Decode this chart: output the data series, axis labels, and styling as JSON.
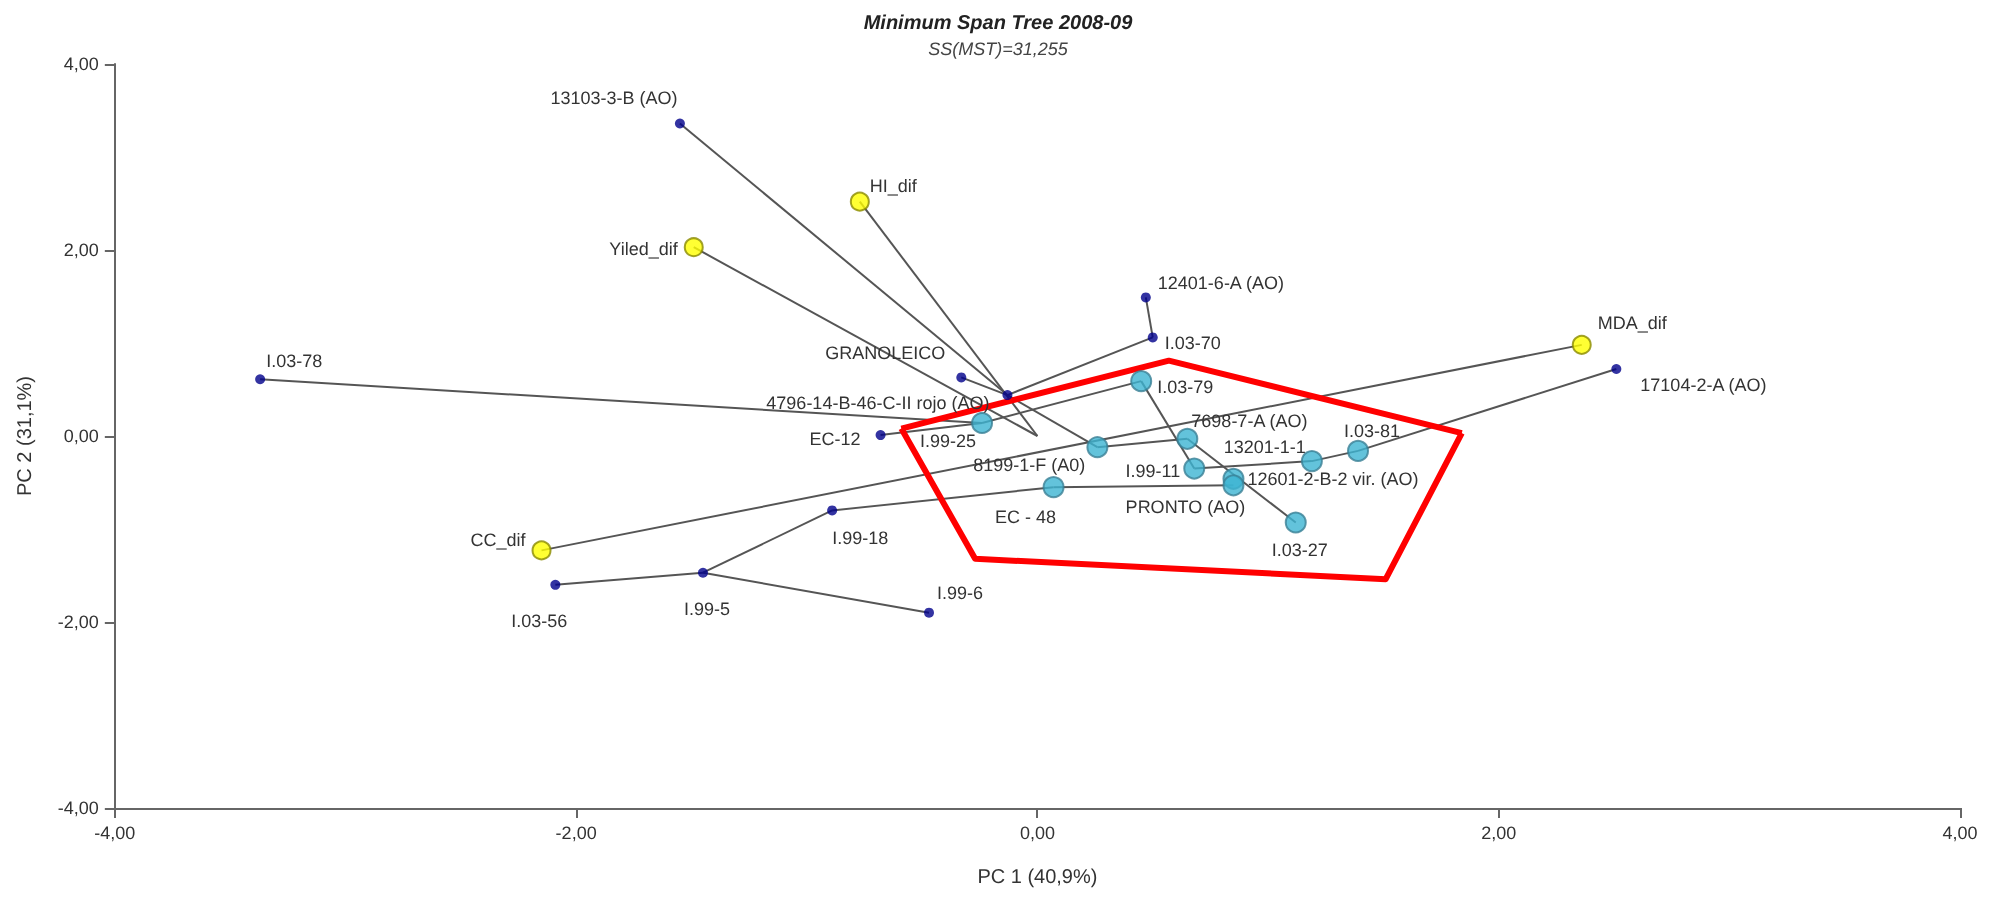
{
  "chart_data": {
    "type": "scatter",
    "title": "Minimum Span Tree 2008-09",
    "subtitle": "SS(MST)=31,255",
    "xlabel": "PC 1 (40,9%)",
    "ylabel": "PC 2 (31,1%)",
    "xlim": [
      -4,
      4
    ],
    "ylim": [
      -4,
      4
    ],
    "xticks": [
      {
        "value": -4,
        "label": "-4,00"
      },
      {
        "value": -2,
        "label": "-2,00"
      },
      {
        "value": 0,
        "label": "0,00"
      },
      {
        "value": 2,
        "label": "2,00"
      },
      {
        "value": 4,
        "label": "4,00"
      }
    ],
    "yticks": [
      {
        "value": -4,
        "label": "-4,00"
      },
      {
        "value": -2,
        "label": "-2,00"
      },
      {
        "value": 0,
        "label": "0,00"
      },
      {
        "value": 2,
        "label": "2,00"
      },
      {
        "value": 4,
        "label": "4,00"
      }
    ],
    "series": [
      {
        "type": "line",
        "color": "#ff0000",
        "marker": "none",
        "x": [
          -0.59,
          0.57,
          1.84
        ],
        "values": [
          0.08,
          0.81,
          0.03
        ]
      },
      {
        "type": "line",
        "color": "#ff0000",
        "marker": "none",
        "x": [
          -0.59,
          -0.27,
          1.51,
          1.84
        ],
        "values": [
          0.08,
          -1.32,
          -1.54,
          0.03
        ]
      },
      {
        "type": "line",
        "color": "#555555",
        "marker": "none",
        "x": [
          -1.55,
          -0.13
        ],
        "values": [
          3.36,
          0.44
        ]
      },
      {
        "type": "line",
        "color": "#555555",
        "marker": "none",
        "x": [
          -3.37,
          -0.24
        ],
        "values": [
          0.61,
          0.14
        ]
      },
      {
        "type": "line",
        "color": "#555555",
        "marker": "none",
        "x": [
          -0.68,
          -0.24
        ],
        "values": [
          0.01,
          0.14
        ]
      },
      {
        "type": "line",
        "color": "#555555",
        "marker": "none",
        "x": [
          -0.33,
          -0.13
        ],
        "values": [
          0.63,
          0.44
        ]
      },
      {
        "type": "line",
        "color": "#555555",
        "marker": "none",
        "x": [
          -0.13,
          0.5
        ],
        "values": [
          0.44,
          1.06
        ]
      },
      {
        "type": "line",
        "color": "#555555",
        "marker": "none",
        "x": [
          0.5,
          0.47
        ],
        "values": [
          1.06,
          1.49
        ]
      },
      {
        "type": "line",
        "color": "#555555",
        "marker": "none",
        "x": [
          -0.24,
          0.45
        ],
        "values": [
          0.14,
          0.59
        ]
      },
      {
        "type": "line",
        "color": "#555555",
        "marker": "none",
        "x": [
          0.45,
          0.68
        ],
        "values": [
          0.59,
          -0.35
        ]
      },
      {
        "type": "line",
        "color": "#555555",
        "marker": "none",
        "x": [
          0.68,
          1.19
        ],
        "values": [
          -0.35,
          -0.27
        ]
      },
      {
        "type": "line",
        "color": "#555555",
        "marker": "none",
        "x": [
          1.19,
          1.39
        ],
        "values": [
          -0.27,
          -0.16
        ]
      },
      {
        "type": "line",
        "color": "#555555",
        "marker": "none",
        "x": [
          1.39,
          2.51
        ],
        "values": [
          -0.16,
          0.72
        ]
      },
      {
        "type": "line",
        "color": "#555555",
        "marker": "none",
        "x": [
          -0.13,
          0.26
        ],
        "values": [
          0.44,
          -0.12
        ]
      },
      {
        "type": "line",
        "color": "#555555",
        "marker": "none",
        "x": [
          0.26,
          0.65
        ],
        "values": [
          -0.12,
          -0.03
        ]
      },
      {
        "type": "line",
        "color": "#555555",
        "marker": "none",
        "x": [
          0.65,
          1.12
        ],
        "values": [
          -0.03,
          -0.93
        ]
      },
      {
        "type": "line",
        "color": "#555555",
        "marker": "none",
        "x": [
          -2.09,
          -1.45
        ],
        "values": [
          -1.6,
          -1.47
        ]
      },
      {
        "type": "line",
        "color": "#555555",
        "marker": "none",
        "x": [
          -1.45,
          -0.89
        ],
        "values": [
          -1.47,
          -0.8
        ]
      },
      {
        "type": "line",
        "color": "#555555",
        "marker": "none",
        "x": [
          -0.89,
          0.07
        ],
        "values": [
          -0.8,
          -0.55
        ]
      },
      {
        "type": "line",
        "color": "#555555",
        "marker": "none",
        "x": [
          0.07,
          0.85
        ],
        "values": [
          -0.55,
          -0.53
        ]
      },
      {
        "type": "line",
        "color": "#555555",
        "marker": "none",
        "x": [
          -1.45,
          -0.47
        ],
        "values": [
          -1.47,
          -1.9
        ]
      },
      {
        "type": "line",
        "color": "#555555",
        "marker": "none",
        "x": [
          -0.77,
          0
        ],
        "values": [
          2.52,
          0
        ]
      },
      {
        "type": "line",
        "color": "#555555",
        "marker": "none",
        "x": [
          -1.49,
          0
        ],
        "values": [
          2.03,
          0
        ]
      },
      {
        "type": "line",
        "color": "#555555",
        "marker": "none",
        "x": [
          -2.15,
          2.36
        ],
        "values": [
          -1.23,
          0.98
        ]
      },
      {
        "type": "scatter",
        "color": "#00008b",
        "marker": "circle",
        "x": [
          -1.55,
          -3.37,
          -0.33,
          -0.13,
          -0.68,
          0.47,
          0.5,
          2.51,
          -0.89,
          -1.45,
          -2.09,
          -0.47
        ],
        "values": [
          3.36,
          0.61,
          0.63,
          0.44,
          0.01,
          1.49,
          1.06,
          0.72,
          -0.8,
          -1.47,
          -1.6,
          -1.9
        ]
      },
      {
        "type": "scatter",
        "color": "#3cb4d2",
        "marker": "circle",
        "x": [
          -0.24,
          0.45,
          0.26,
          0.65,
          0.68,
          1.19,
          1.39,
          0.85,
          0.85,
          0.07,
          1.12
        ],
        "values": [
          0.14,
          0.59,
          -0.12,
          -0.03,
          -0.35,
          -0.27,
          -0.16,
          -0.46,
          -0.53,
          -0.55,
          -0.93
        ]
      },
      {
        "type": "scatter",
        "color": "#ffff00",
        "marker": "circle",
        "x": [
          -0.77,
          -1.49,
          2.36,
          -2.15
        ],
        "values": [
          2.52,
          2.03,
          0.98,
          -1.23
        ]
      }
    ],
    "annotations": [
      {
        "text": "13103-3-B (AO)",
        "x": -1.55,
        "y": 3.36
      },
      {
        "text": "I.03-78",
        "x": -3.37,
        "y": 0.61
      },
      {
        "text": "GRANOLEICO",
        "x": -0.33,
        "y": 0.63
      },
      {
        "text": "4796-14-B-46-C-II rojo (AO)",
        "x": -0.13,
        "y": 0.44
      },
      {
        "text": "EC-12",
        "x": -0.68,
        "y": 0.01
      },
      {
        "text": "12401-6-A (AO)",
        "x": 0.47,
        "y": 1.49
      },
      {
        "text": "I.03-70",
        "x": 0.5,
        "y": 1.06
      },
      {
        "text": "17104-2-A (AO)",
        "x": 2.51,
        "y": 0.72
      },
      {
        "text": "I.99-18",
        "x": -0.89,
        "y": -0.8
      },
      {
        "text": "I.99-5",
        "x": -1.45,
        "y": -1.47
      },
      {
        "text": "I.03-56",
        "x": -2.09,
        "y": -1.6
      },
      {
        "text": "I.99-6",
        "x": -0.47,
        "y": -1.9
      },
      {
        "text": "I.99-25",
        "x": -0.24,
        "y": 0.14
      },
      {
        "text": "I.03-79",
        "x": 0.45,
        "y": 0.59
      },
      {
        "text": "8199-1-F (A0)",
        "x": 0.26,
        "y": -0.12
      },
      {
        "text": "7698-7-A (AO)",
        "x": 0.65,
        "y": -0.03
      },
      {
        "text": "I.99-11",
        "x": 0.68,
        "y": -0.35
      },
      {
        "text": "13201-1-1",
        "x": 1.19,
        "y": -0.27
      },
      {
        "text": "I.03-81",
        "x": 1.39,
        "y": -0.16
      },
      {
        "text": "12601-2-B-2 vir. (AO)",
        "x": 0.85,
        "y": -0.46
      },
      {
        "text": "PRONTO (AO)",
        "x": 0.85,
        "y": -0.53
      },
      {
        "text": "EC - 48",
        "x": 0.07,
        "y": -0.55
      },
      {
        "text": "I.03-27",
        "x": 1.12,
        "y": -0.93
      },
      {
        "text": "HI_dif",
        "x": -0.77,
        "y": 2.52
      },
      {
        "text": "Yiled_dif",
        "x": -1.49,
        "y": 2.03
      },
      {
        "text": "MDA_dif",
        "x": 2.36,
        "y": 0.98
      },
      {
        "text": "CC_dif",
        "x": -2.15,
        "y": -1.23
      }
    ]
  }
}
